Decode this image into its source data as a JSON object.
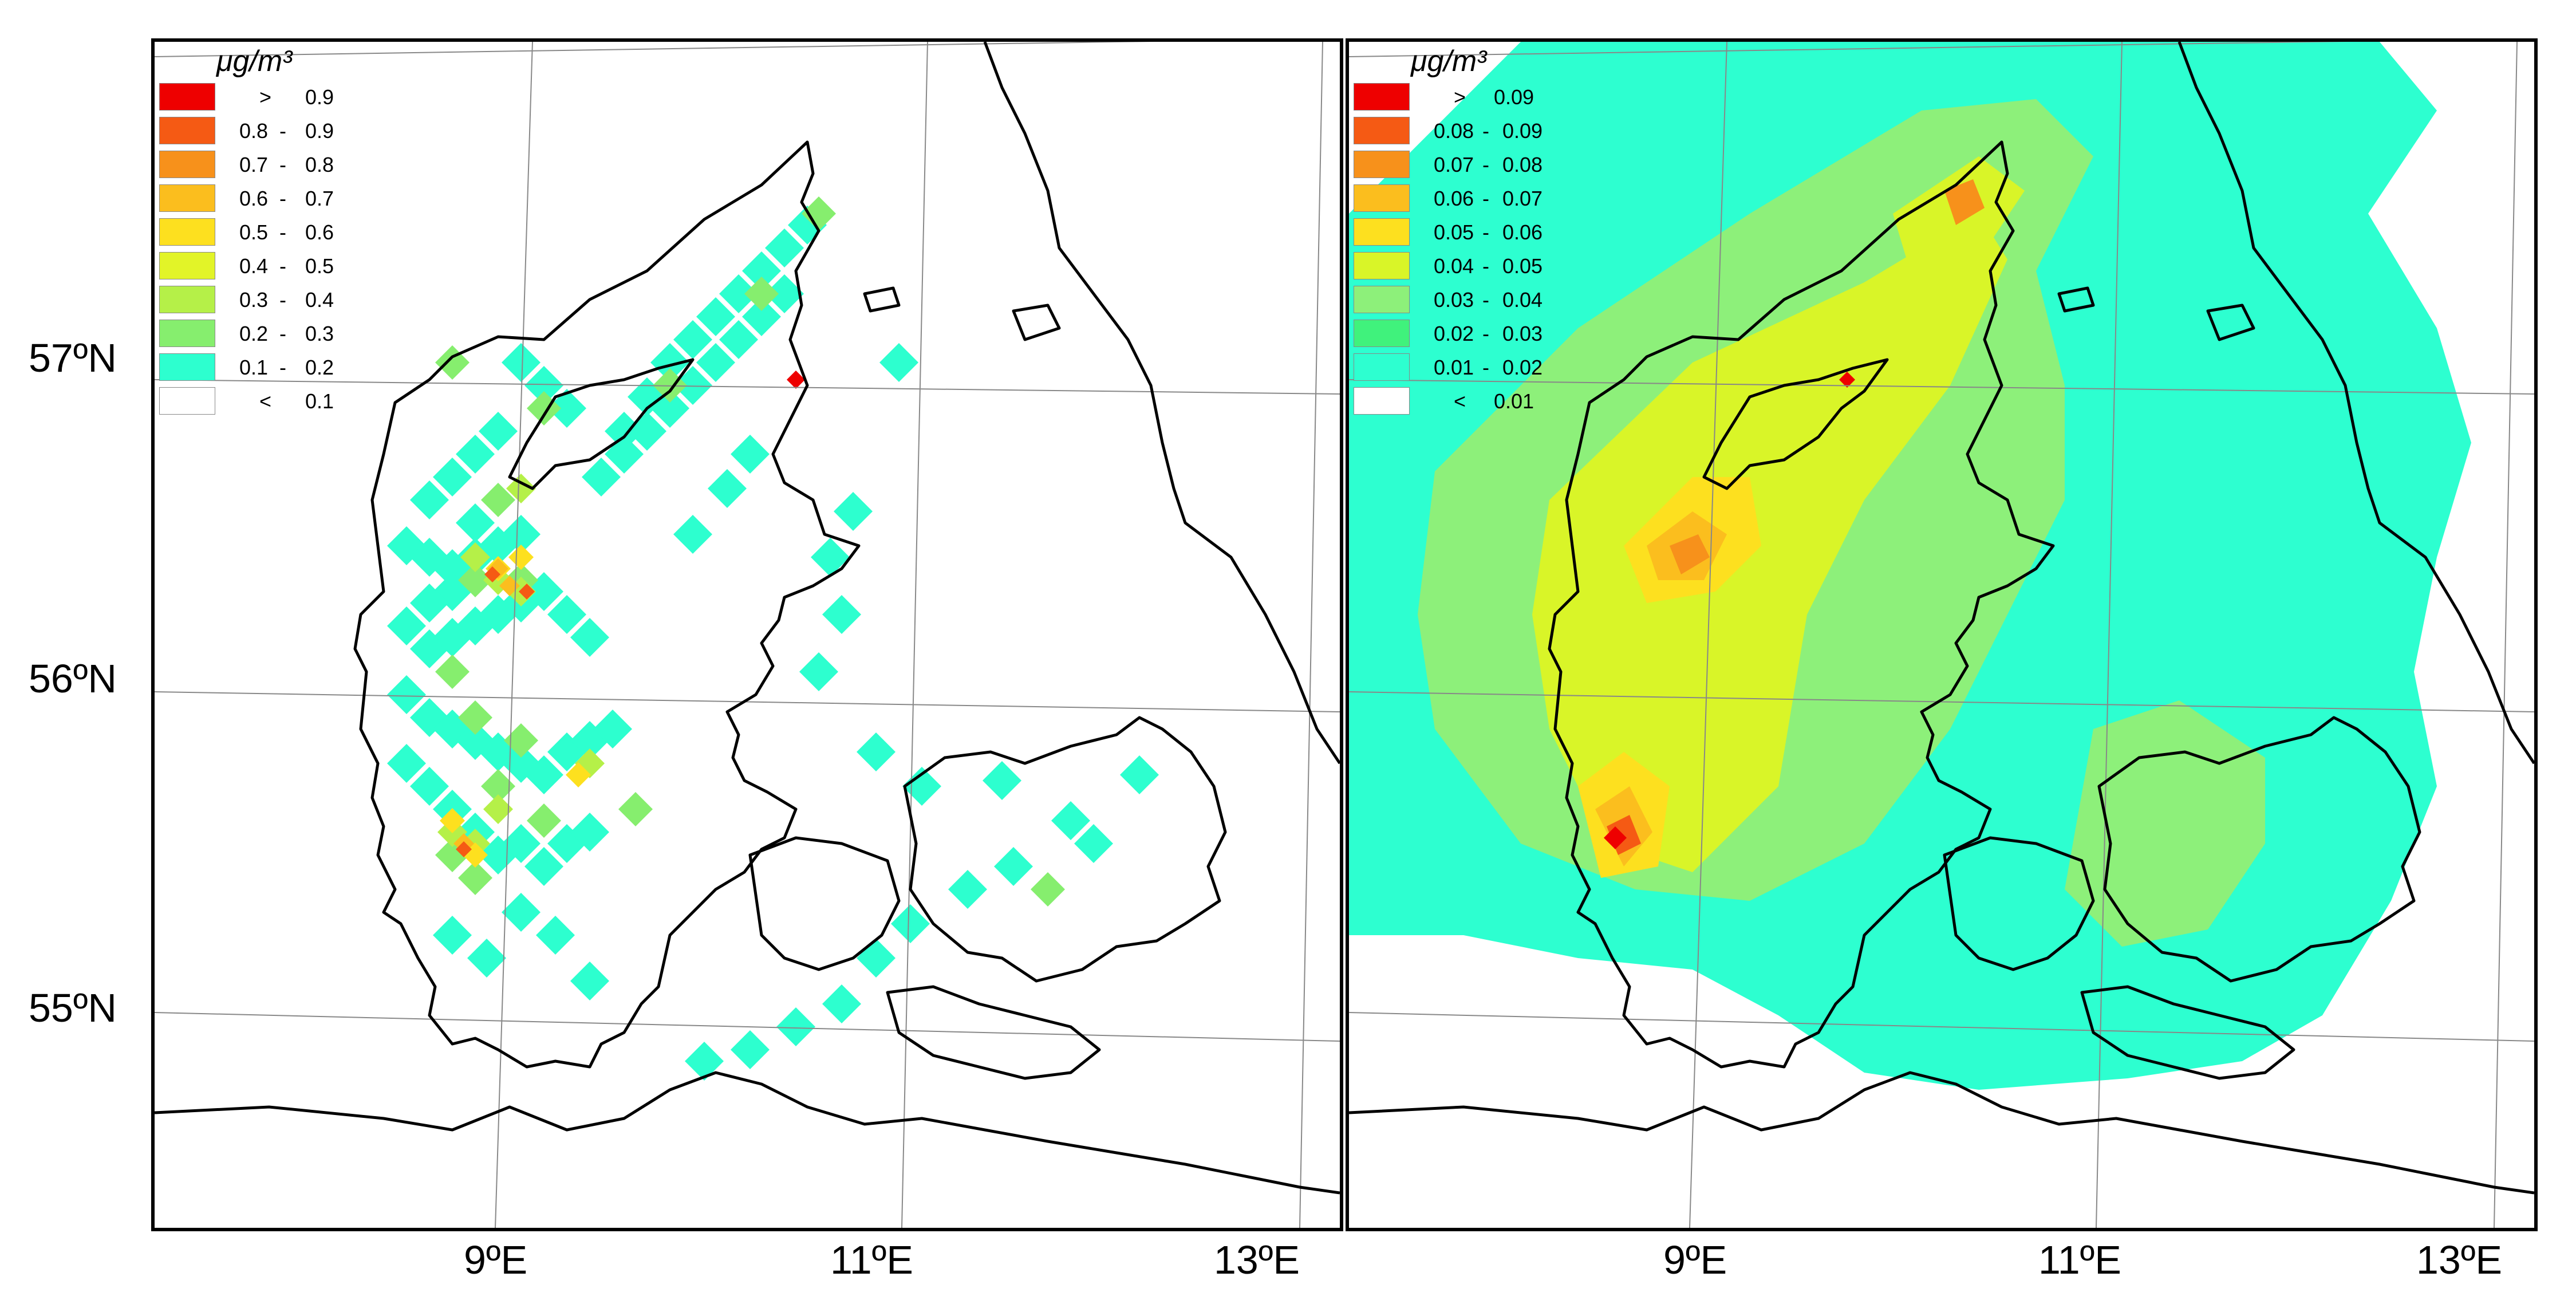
{
  "unit": "μg/m³",
  "left_panel": {
    "legend": [
      {
        "op": ">",
        "a": "0.9",
        "b": "",
        "color": "#ee0000"
      },
      {
        "op": "",
        "a": "0.8",
        "b": "0.9",
        "color": "#f55a14"
      },
      {
        "op": "",
        "a": "0.7",
        "b": "0.8",
        "color": "#f7911b"
      },
      {
        "op": "",
        "a": "0.6",
        "b": "0.7",
        "color": "#fbbe1e"
      },
      {
        "op": "",
        "a": "0.5",
        "b": "0.6",
        "color": "#fde01f"
      },
      {
        "op": "",
        "a": "0.4",
        "b": "0.5",
        "color": "#e2f428"
      },
      {
        "op": "",
        "a": "0.3",
        "b": "0.4",
        "color": "#b5f048"
      },
      {
        "op": "",
        "a": "0.2",
        "b": "0.3",
        "color": "#86ee6e"
      },
      {
        "op": "",
        "a": "0.1",
        "b": "0.2",
        "color": "#2dffcf"
      },
      {
        "op": "<",
        "a": "0.1",
        "b": "",
        "color": "#ffffff"
      }
    ]
  },
  "right_panel": {
    "legend": [
      {
        "op": ">",
        "a": "0.09",
        "b": "",
        "color": "#ee0000"
      },
      {
        "op": "",
        "a": "0.08",
        "b": "0.09",
        "color": "#f55a14"
      },
      {
        "op": "",
        "a": "0.07",
        "b": "0.08",
        "color": "#f7911b"
      },
      {
        "op": "",
        "a": "0.06",
        "b": "0.07",
        "color": "#fbbe1e"
      },
      {
        "op": "",
        "a": "0.05",
        "b": "0.06",
        "color": "#fde01f"
      },
      {
        "op": "",
        "a": "0.04",
        "b": "0.05",
        "color": "#d9f528"
      },
      {
        "op": "",
        "a": "0.03",
        "b": "0.04",
        "color": "#8df07a"
      },
      {
        "op": "",
        "a": "0.02",
        "b": "0.03",
        "color": "#40f27c"
      },
      {
        "op": "",
        "a": "0.01",
        "b": "0.02",
        "color": "#2dffd0"
      },
      {
        "op": "<",
        "a": "0.01",
        "b": "",
        "color": "#ffffff"
      }
    ]
  },
  "axes": {
    "latitudes": [
      "57ºN",
      "56ºN",
      "55ºN"
    ],
    "longitudes": [
      "9ºE",
      "11ºE",
      "13ºE"
    ]
  }
}
